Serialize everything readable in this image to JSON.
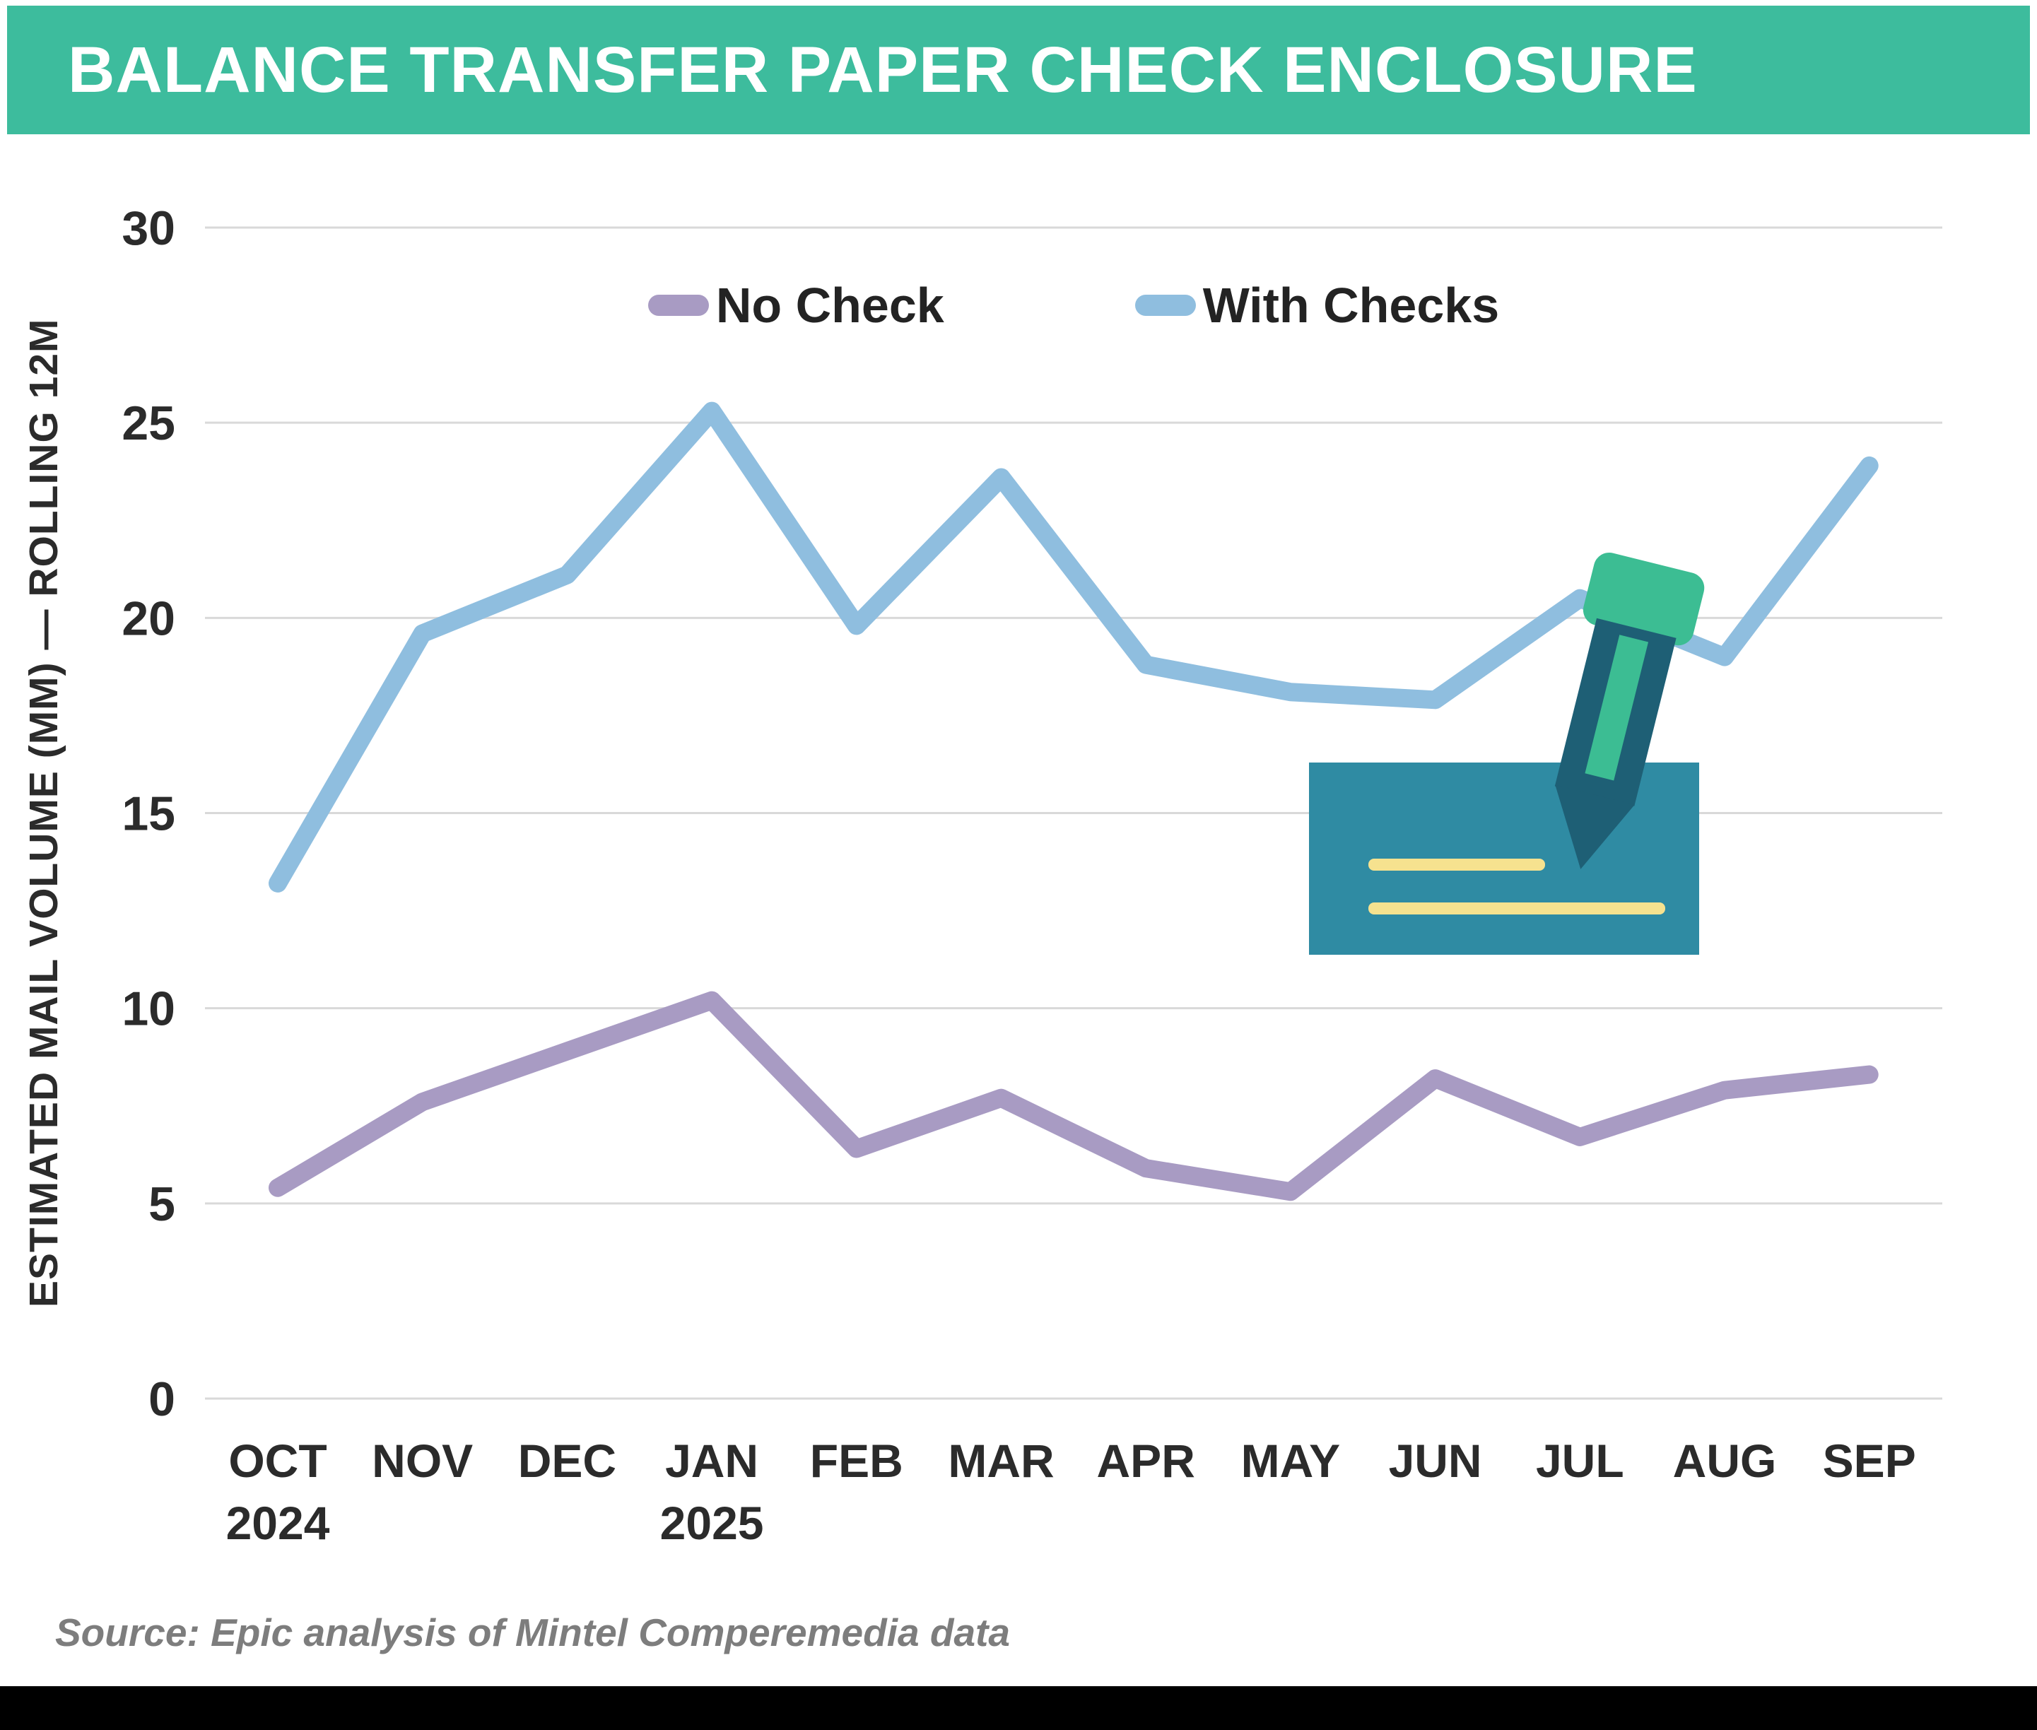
{
  "header": {
    "title": "BALANCE TRANSFER PAPER CHECK ENCLOSURE",
    "bg_color": "#3dbc9d"
  },
  "chart_data": {
    "type": "line",
    "title": "BALANCE TRANSFER PAPER CHECK ENCLOSURE",
    "xlabel": "",
    "ylabel": "ESTIMATED MAIL VOLUME (MM) — ROLLING 12M",
    "categories": [
      "OCT",
      "NOV",
      "DEC",
      "JAN",
      "FEB",
      "MAR",
      "APR",
      "MAY",
      "JUN",
      "JUL",
      "AUG",
      "SEP"
    ],
    "year_labels": [
      {
        "index": 0,
        "label": "2024"
      },
      {
        "index": 3,
        "label": "2025"
      }
    ],
    "ylim": [
      0,
      30
    ],
    "yticks": [
      0,
      5,
      10,
      15,
      20,
      25,
      30
    ],
    "grid": true,
    "legend_position": "top-center",
    "series": [
      {
        "name": "No Check",
        "color": "#a89bc3",
        "values": [
          5.4,
          7.6,
          8.9,
          10.2,
          6.4,
          7.7,
          5.9,
          5.3,
          8.2,
          6.7,
          7.9,
          8.3
        ]
      },
      {
        "name": "With Checks",
        "color": "#8fbedf",
        "values": [
          13.2,
          19.6,
          21.1,
          25.3,
          19.8,
          23.6,
          18.8,
          18.1,
          17.9,
          20.5,
          19.0,
          23.9
        ]
      }
    ],
    "text_color": "#2b2b2b",
    "gridline_color": "#d9d9d9"
  },
  "illustration": {
    "check_color": "#2f8ba3",
    "check_line_color": "#f6e28f",
    "pen_color": "#1e5f75",
    "pen_accent_color": "#3cbd93"
  },
  "footer": {
    "source": "Source: Epic analysis of Mintel Comperemedia data"
  }
}
